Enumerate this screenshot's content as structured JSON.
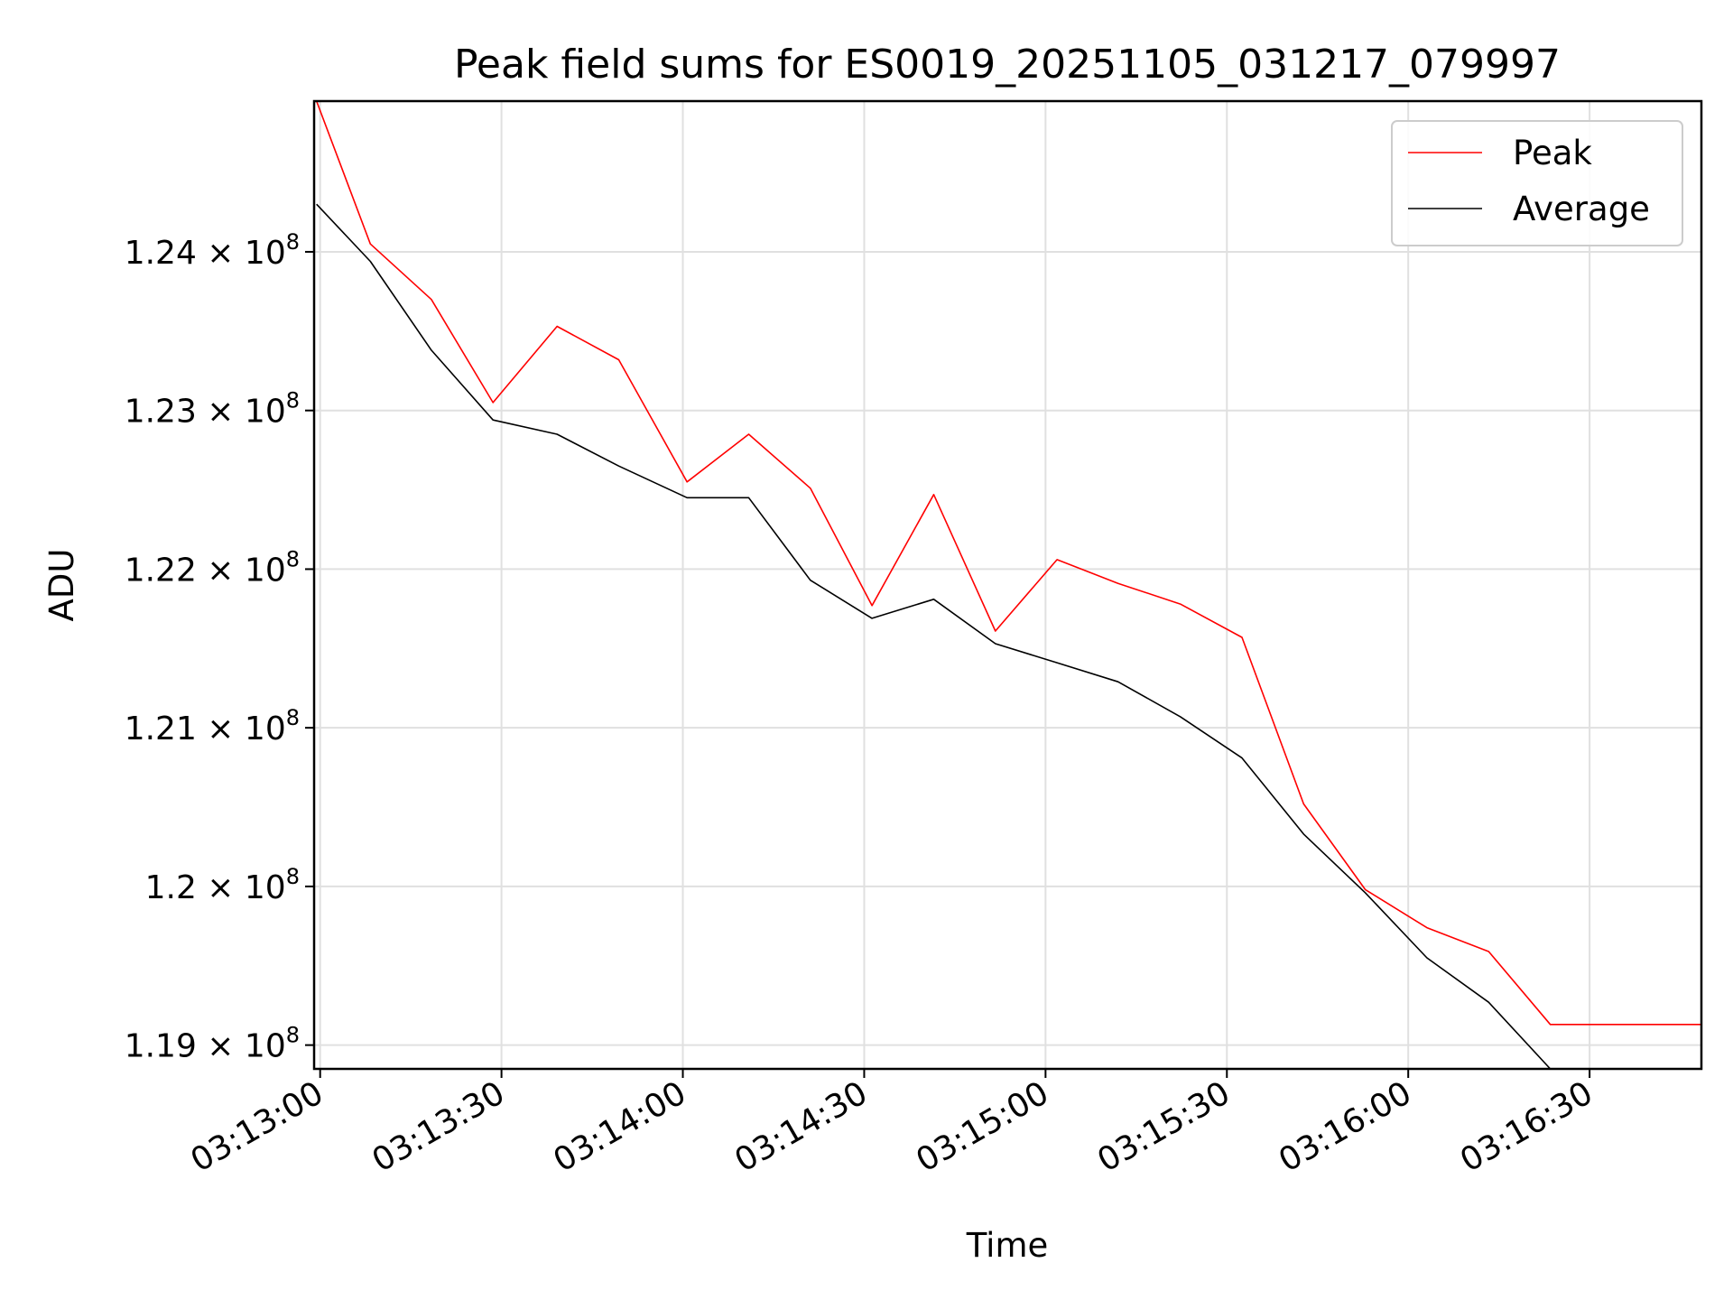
{
  "chart_data": {
    "type": "line",
    "title": "Peak field sums for ES0019_20251105_031217_079997",
    "xlabel": "Time",
    "ylabel": "ADU",
    "xlim": [
      "03:12:59",
      "03:16:48"
    ],
    "ylim": [
      118850000,
      124950000
    ],
    "grid": true,
    "legend_position": "top-right",
    "x_ticks": [
      {
        "label": "03:13:00",
        "seconds": 180
      },
      {
        "label": "03:13:30",
        "seconds": 210
      },
      {
        "label": "03:14:00",
        "seconds": 240
      },
      {
        "label": "03:14:30",
        "seconds": 270
      },
      {
        "label": "03:15:00",
        "seconds": 300
      },
      {
        "label": "03:15:30",
        "seconds": 330
      },
      {
        "label": "03:16:00",
        "seconds": 360
      },
      {
        "label": "03:16:30",
        "seconds": 390
      }
    ],
    "y_ticks": [
      {
        "value": 119000000,
        "mantissa": "1.19",
        "exponent": "8"
      },
      {
        "value": 120000000,
        "mantissa": "1.2",
        "exponent": "8"
      },
      {
        "value": 121000000,
        "mantissa": "1.21",
        "exponent": "8"
      },
      {
        "value": 122000000,
        "mantissa": "1.22",
        "exponent": "8"
      },
      {
        "value": 123000000,
        "mantissa": "1.23",
        "exponent": "8"
      },
      {
        "value": 124000000,
        "mantissa": "1.24",
        "exponent": "8"
      }
    ],
    "x_seconds": [
      179.4,
      188.3,
      198.4,
      208.6,
      219.2,
      229.4,
      240.7,
      250.9,
      261.1,
      271.3,
      281.5,
      291.7,
      301.9,
      312.0,
      322.3,
      332.5,
      342.7,
      352.9,
      363.1,
      373.3,
      383.5,
      393.7,
      408.5
    ],
    "series": [
      {
        "name": "Peak",
        "color": "#ff0000",
        "values": [
          124950000,
          124050000,
          123700000,
          123050000,
          123530000,
          123320000,
          122550000,
          122850000,
          122510000,
          121770000,
          122470000,
          121610000,
          122060000,
          121910000,
          121780000,
          121570000,
          120520000,
          119980000,
          119740000,
          119590000,
          119130000,
          119130000,
          119130000
        ]
      },
      {
        "name": "Average",
        "color": "#000000",
        "values": [
          124300000,
          123940000,
          123380000,
          122940000,
          122850000,
          122650000,
          122450000,
          122450000,
          121930000,
          121690000,
          121810000,
          121530000,
          121410000,
          121290000,
          121070000,
          120810000,
          120330000,
          119960000,
          119550000,
          119270000,
          118850000,
          118850000,
          118850000
        ]
      }
    ]
  }
}
